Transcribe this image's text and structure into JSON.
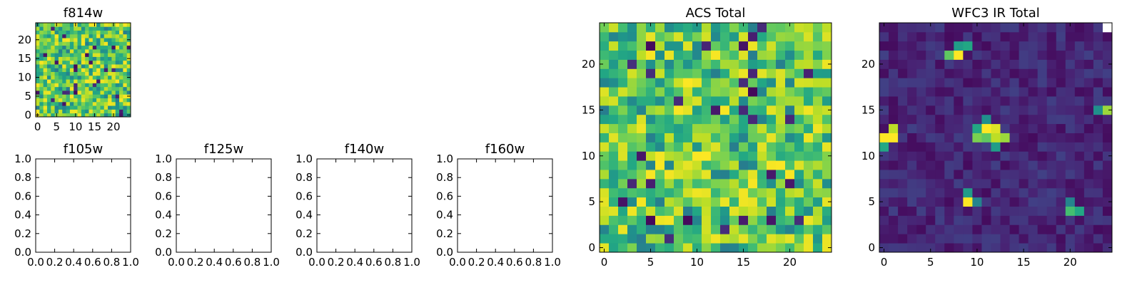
{
  "figure": {
    "note_colormap": "viridis"
  },
  "chart_data": [
    {
      "type": "heatmap",
      "title": "f814w",
      "grid": false,
      "xlim": [
        -0.5,
        24.5
      ],
      "ylim": [
        -0.5,
        24.5
      ],
      "xticks": [
        0,
        5,
        10,
        15,
        20
      ],
      "yticks": [
        0,
        5,
        10,
        15,
        20
      ],
      "size": 25,
      "pattern": "noise-high",
      "colormap": "viridis"
    },
    {
      "type": "heatmap",
      "title": "f105w",
      "grid": false,
      "empty": true,
      "xlim": [
        0.0,
        1.0
      ],
      "ylim": [
        0.0,
        1.0
      ],
      "xticks": [
        "0.0",
        "0.2",
        "0.4",
        "0.6",
        "0.8",
        "1.0"
      ],
      "yticks": [
        "0.0",
        "0.2",
        "0.4",
        "0.6",
        "0.8",
        "1.0"
      ]
    },
    {
      "type": "heatmap",
      "title": "f125w",
      "grid": false,
      "empty": true,
      "xlim": [
        0.0,
        1.0
      ],
      "ylim": [
        0.0,
        1.0
      ],
      "xticks": [
        "0.0",
        "0.2",
        "0.4",
        "0.6",
        "0.8",
        "1.0"
      ],
      "yticks": [
        "0.0",
        "0.2",
        "0.4",
        "0.6",
        "0.8",
        "1.0"
      ]
    },
    {
      "type": "heatmap",
      "title": "f140w",
      "grid": false,
      "empty": true,
      "xlim": [
        0.0,
        1.0
      ],
      "ylim": [
        0.0,
        1.0
      ],
      "xticks": [
        "0.0",
        "0.2",
        "0.4",
        "0.6",
        "0.8",
        "1.0"
      ],
      "yticks": [
        "0.0",
        "0.2",
        "0.4",
        "0.6",
        "0.8",
        "1.0"
      ]
    },
    {
      "type": "heatmap",
      "title": "f160w",
      "grid": false,
      "empty": true,
      "xlim": [
        0.0,
        1.0
      ],
      "ylim": [
        0.0,
        1.0
      ],
      "xticks": [
        "0.0",
        "0.2",
        "0.4",
        "0.6",
        "0.8",
        "1.0"
      ],
      "yticks": [
        "0.0",
        "0.2",
        "0.4",
        "0.6",
        "0.8",
        "1.0"
      ]
    },
    {
      "type": "heatmap",
      "title": "ACS Total",
      "grid": false,
      "xlim": [
        -0.5,
        24.5
      ],
      "ylim": [
        -0.5,
        24.5
      ],
      "xticks": [
        0,
        5,
        10,
        15,
        20
      ],
      "yticks": [
        0,
        5,
        10,
        15,
        20
      ],
      "size": 25,
      "pattern": "noise-high",
      "colormap": "viridis"
    },
    {
      "type": "heatmap",
      "title": "WFC3 IR Total",
      "grid": false,
      "xlim": [
        -0.5,
        24.5
      ],
      "ylim": [
        -0.5,
        24.5
      ],
      "xticks": [
        0,
        5,
        10,
        15,
        20
      ],
      "yticks": [
        0,
        5,
        10,
        15,
        20
      ],
      "size": 25,
      "pattern": "sparse-sources",
      "colormap": "viridis",
      "bright_pixels": [
        {
          "x": 8,
          "y": 21,
          "value": 1.0
        },
        {
          "x": 7,
          "y": 21,
          "value": 0.75
        },
        {
          "x": 9,
          "y": 22,
          "value": 0.6
        },
        {
          "x": 8,
          "y": 22,
          "value": 0.55
        },
        {
          "x": 0,
          "y": 12,
          "value": 1.0
        },
        {
          "x": 1,
          "y": 12,
          "value": 1.0
        },
        {
          "x": 1,
          "y": 13,
          "value": 0.9
        },
        {
          "x": 0,
          "y": 11,
          "value": 0.6
        },
        {
          "x": 11,
          "y": 13,
          "value": 1.0
        },
        {
          "x": 12,
          "y": 13,
          "value": 0.95
        },
        {
          "x": 12,
          "y": 12,
          "value": 0.9
        },
        {
          "x": 13,
          "y": 12,
          "value": 0.85
        },
        {
          "x": 10,
          "y": 12,
          "value": 0.8
        },
        {
          "x": 11,
          "y": 12,
          "value": 0.75
        },
        {
          "x": 10,
          "y": 13,
          "value": 0.6
        },
        {
          "x": 11,
          "y": 14,
          "value": 0.5
        },
        {
          "x": 12,
          "y": 11,
          "value": 0.55
        },
        {
          "x": 9,
          "y": 5,
          "value": 1.0
        },
        {
          "x": 9,
          "y": 6,
          "value": 0.55
        },
        {
          "x": 10,
          "y": 5,
          "value": 0.45
        },
        {
          "x": 20,
          "y": 4,
          "value": 0.7
        },
        {
          "x": 21,
          "y": 4,
          "value": 0.6
        },
        {
          "x": 20,
          "y": 5,
          "value": 0.45
        },
        {
          "x": 24,
          "y": 15,
          "value": 0.85
        },
        {
          "x": 23,
          "y": 15,
          "value": 0.5
        },
        {
          "x": 24,
          "y": 24,
          "value": 1.2
        }
      ]
    }
  ]
}
